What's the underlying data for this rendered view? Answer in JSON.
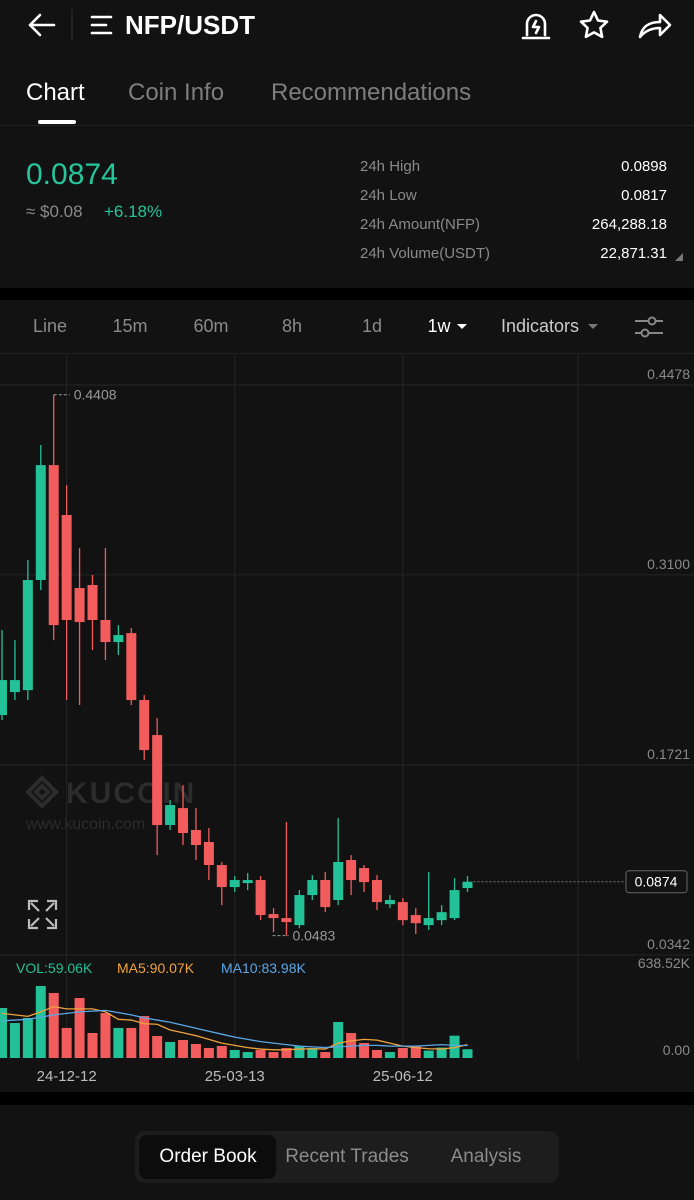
{
  "header": {
    "title": "NFP/USDT"
  },
  "tabs": [
    "Chart",
    "Coin Info",
    "Recommendations"
  ],
  "active_tab": 0,
  "ticker": {
    "price": "0.0874",
    "usd": "≈ $0.08",
    "change": "+6.18%",
    "stats": [
      {
        "label": "24h High",
        "value": "0.0898"
      },
      {
        "label": "24h Low",
        "value": "0.0817"
      },
      {
        "label": "24h Amount(NFP)",
        "value": "264,288.18"
      },
      {
        "label": "24h Volume(USDT)",
        "value": "22,871.31"
      }
    ]
  },
  "intervals": [
    "Line",
    "15m",
    "60m",
    "8h",
    "1d",
    "1w"
  ],
  "active_interval": 5,
  "indicators": "Indicators",
  "chart_data": [
    {
      "type": "candlestick",
      "categories": [
        null,
        null,
        null,
        null,
        null,
        "24-12-12",
        null,
        null,
        null,
        null,
        null,
        null,
        null,
        null,
        null,
        null,
        null,
        null,
        "25-03-13",
        null,
        null,
        null,
        null,
        null,
        null,
        null,
        null,
        null,
        null,
        null,
        null,
        "25-06-12",
        null,
        null,
        null,
        null,
        null
      ],
      "open": [
        0.2083,
        0.225,
        0.2264,
        0.3063,
        0.3897,
        0.3535,
        0.3005,
        0.3027,
        0.2773,
        0.2613,
        0.2678,
        0.2192,
        0.1938,
        0.1285,
        0.1408,
        0.1249,
        0.1162,
        0.0995,
        0.0835,
        0.0864,
        0.0886,
        0.0639,
        0.061,
        0.0559,
        0.0777,
        0.0886,
        0.0741,
        0.1031,
        0.0973,
        0.0886,
        0.0711,
        0.0726,
        0.0632,
        0.0559,
        0.0595,
        0.061,
        0.0828
      ],
      "high": [
        0.27,
        0.2627,
        0.3208,
        0.4043,
        0.4408,
        0.3752,
        0.3295,
        0.31,
        0.3295,
        0.2736,
        0.2714,
        0.2228,
        0.2061,
        0.1467,
        0.1575,
        0.1408,
        0.1264,
        0.1017,
        0.0915,
        0.0937,
        0.0915,
        0.0682,
        0.1307,
        0.0813,
        0.0922,
        0.0944,
        0.1336,
        0.1067,
        0.0995,
        0.0922,
        0.0777,
        0.0755,
        0.0682,
        0.0944,
        0.0704,
        0.09,
        0.0915
      ],
      "low": [
        0.2047,
        0.2192,
        0.2192,
        0.299,
        0.2627,
        0.2192,
        0.2156,
        0.2555,
        0.2482,
        0.2519,
        0.2156,
        0.1757,
        0.1067,
        0.1249,
        0.114,
        0.1031,
        0.0886,
        0.0704,
        0.0799,
        0.0813,
        0.0596,
        0.0508,
        0.0483,
        0.0537,
        0.0741,
        0.0653,
        0.0704,
        0.0777,
        0.0799,
        0.0668,
        0.0682,
        0.0559,
        0.0494,
        0.0523,
        0.0559,
        0.0596,
        0.0799
      ],
      "close": [
        0.2337,
        0.2337,
        0.3063,
        0.3897,
        0.2736,
        0.2773,
        0.2758,
        0.2773,
        0.2613,
        0.2664,
        0.2192,
        0.1829,
        0.1285,
        0.143,
        0.1227,
        0.114,
        0.0995,
        0.0835,
        0.0886,
        0.0886,
        0.0632,
        0.061,
        0.0581,
        0.0777,
        0.0886,
        0.069,
        0.1017,
        0.0886,
        0.0871,
        0.0726,
        0.0741,
        0.0595,
        0.0573,
        0.061,
        0.0653,
        0.0813,
        0.0874
      ],
      "up_color": "#22c197",
      "down_color": "#f35c5c",
      "ylim": [
        0.0342,
        0.4696
      ],
      "yticks": [
        0.4478,
        {
          "value": 0.31,
          "label": "0.3100"
        },
        0.1721,
        0.0342
      ],
      "grid": true,
      "current_price": 0.0874,
      "high_marker": 0.4408,
      "low_marker": 0.0483,
      "watermark": [
        "KUCOIN",
        "www.kucoin.com"
      ]
    },
    {
      "type": "bar",
      "values": [
        336,
        235,
        269,
        484,
        437,
        202,
        403,
        168,
        302,
        202,
        202,
        282,
        148,
        108,
        121,
        94,
        67,
        81,
        54,
        40,
        54,
        40,
        67,
        81,
        67,
        40,
        242,
        168,
        101,
        54,
        40,
        67,
        80,
        50,
        70,
        150,
        59.06
      ],
      "series": [
        {
          "name": "MA5",
          "color": "#f0a33c",
          "values": [
            300,
            290,
            280,
            310,
            345,
            330,
            330,
            330,
            310,
            260,
            255,
            230,
            227,
            188,
            170,
            150,
            125,
            100,
            85,
            70,
            60,
            55,
            55,
            60,
            62,
            60,
            100,
            115,
            125,
            120,
            100,
            80,
            70,
            62,
            60,
            70,
            90.07
          ]
        },
        {
          "name": "MA10",
          "color": "#5aa7e8",
          "values": [
            250,
            255,
            260,
            275,
            290,
            300,
            310,
            315,
            320,
            305,
            290,
            270,
            255,
            240,
            220,
            200,
            180,
            160,
            140,
            125,
            110,
            100,
            90,
            80,
            75,
            70,
            75,
            80,
            85,
            85,
            80,
            80,
            80,
            85,
            90,
            85,
            83.98
          ]
        }
      ],
      "legend_labels": [
        "VOL:59.06K",
        "MA5:90.07K",
        "MA10:83.98K"
      ],
      "legend_colors": [
        "#22c197",
        "#f0a33c",
        "#5aa7e8"
      ],
      "ylim": [
        0,
        638.52
      ],
      "yticks": [
        {
          "value": 638.52,
          "label": "638.52K"
        },
        {
          "value": 0,
          "label": "0.00"
        }
      ]
    }
  ],
  "footer": {
    "tabs": [
      "Order Book",
      "Recent Trades",
      "Analysis"
    ],
    "active": 0
  }
}
